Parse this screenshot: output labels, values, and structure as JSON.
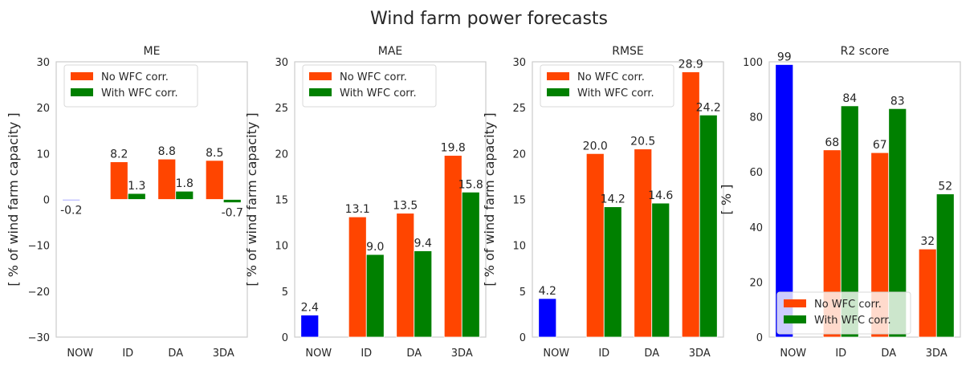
{
  "suptitle": "Wind farm power forecasts",
  "colors": {
    "now": "#0000ff",
    "no_corr": "#ff4500",
    "with_corr": "#008000",
    "frame": "#cccccc"
  },
  "chart_data": [
    {
      "type": "bar",
      "title": "ME",
      "ylabel": "[ % of wind farm capacity ]",
      "ylim": [
        -30,
        30
      ],
      "yticks": [
        "−30",
        "−20",
        "−10",
        "0",
        "10",
        "20",
        "30"
      ],
      "categories": [
        "NOW",
        "ID",
        "DA",
        "3DA"
      ],
      "legend_location": "upper-left",
      "series": [
        {
          "name": "",
          "values": [
            -0.2,
            null,
            null,
            null
          ],
          "labels": [
            "-0.2",
            "",
            "",
            ""
          ]
        },
        {
          "name": "No WFC corr.",
          "values": [
            null,
            8.2,
            8.8,
            8.5
          ],
          "labels": [
            "",
            "8.2",
            "8.8",
            "8.5"
          ]
        },
        {
          "name": "With WFC corr.",
          "values": [
            null,
            1.3,
            1.8,
            -0.7
          ],
          "labels": [
            "",
            "1.3",
            "1.8",
            "-0.7"
          ]
        }
      ]
    },
    {
      "type": "bar",
      "title": "MAE",
      "ylabel": "[ % of wind farm capacity ]",
      "ylim": [
        0,
        30
      ],
      "yticks": [
        "0",
        "5",
        "10",
        "15",
        "20",
        "25",
        "30"
      ],
      "categories": [
        "NOW",
        "ID",
        "DA",
        "3DA"
      ],
      "legend_location": "upper-left",
      "series": [
        {
          "name": "",
          "values": [
            2.4,
            null,
            null,
            null
          ],
          "labels": [
            "2.4",
            "",
            "",
            ""
          ]
        },
        {
          "name": "No WFC corr.",
          "values": [
            null,
            13.1,
            13.5,
            19.8
          ],
          "labels": [
            "",
            "13.1",
            "13.5",
            "19.8"
          ]
        },
        {
          "name": "With WFC corr.",
          "values": [
            null,
            9.0,
            9.4,
            15.8
          ],
          "labels": [
            "",
            "9.0",
            "9.4",
            "15.8"
          ]
        }
      ]
    },
    {
      "type": "bar",
      "title": "RMSE",
      "ylabel": "[ % of wind farm capacity ]",
      "ylim": [
        0,
        30
      ],
      "yticks": [
        "0",
        "5",
        "10",
        "15",
        "20",
        "25",
        "30"
      ],
      "categories": [
        "NOW",
        "ID",
        "DA",
        "3DA"
      ],
      "legend_location": "upper-left",
      "series": [
        {
          "name": "",
          "values": [
            4.2,
            null,
            null,
            null
          ],
          "labels": [
            "4.2",
            "",
            "",
            ""
          ]
        },
        {
          "name": "No WFC corr.",
          "values": [
            null,
            20.0,
            20.5,
            28.9
          ],
          "labels": [
            "",
            "20.0",
            "20.5",
            "28.9"
          ]
        },
        {
          "name": "With WFC corr.",
          "values": [
            null,
            14.2,
            14.6,
            24.2
          ],
          "labels": [
            "",
            "14.2",
            "14.6",
            "24.2"
          ]
        }
      ]
    },
    {
      "type": "bar",
      "title": "R2 score",
      "ylabel": "[ % ]",
      "ylim": [
        0,
        100
      ],
      "yticks": [
        "0",
        "20",
        "40",
        "60",
        "80",
        "100"
      ],
      "categories": [
        "NOW",
        "ID",
        "DA",
        "3DA"
      ],
      "legend_location": "lower-left",
      "series": [
        {
          "name": "",
          "values": [
            99,
            null,
            null,
            null
          ],
          "labels": [
            "99",
            "",
            "",
            ""
          ]
        },
        {
          "name": "No WFC corr.",
          "values": [
            null,
            68,
            67,
            32
          ],
          "labels": [
            "",
            "68",
            "67",
            "32"
          ]
        },
        {
          "name": "With WFC corr.",
          "values": [
            null,
            84,
            83,
            52
          ],
          "labels": [
            "",
            "84",
            "83",
            "52"
          ]
        }
      ]
    }
  ]
}
